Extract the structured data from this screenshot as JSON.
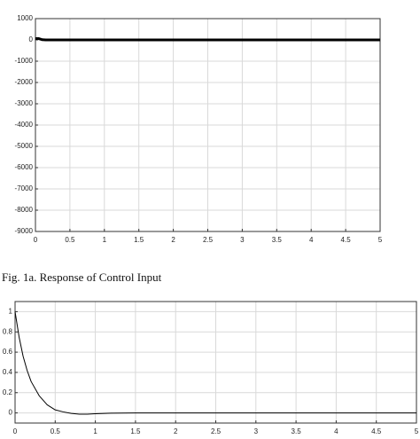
{
  "caption": "Fig. 1a. Response of Control Input",
  "chart_data": [
    {
      "type": "line",
      "x": [
        0,
        0.05,
        0.1,
        0.15,
        1,
        2,
        3,
        4,
        5
      ],
      "series": [
        {
          "color": "#000000",
          "values": [
            60,
            60,
            10,
            0,
            0,
            0,
            0,
            0,
            0
          ]
        }
      ],
      "xlim": [
        0,
        5
      ],
      "xticks": [
        0,
        0.5,
        1,
        1.5,
        2,
        2.5,
        3,
        3.5,
        4,
        4.5,
        5
      ],
      "ylim": [
        -9000,
        1000
      ],
      "yticks": [
        1000,
        0,
        -1000,
        -2000,
        -3000,
        -4000,
        -5000,
        -6000,
        -7000,
        -8000,
        -9000
      ],
      "grid": true
    },
    {
      "type": "line",
      "x": [
        0,
        0.05,
        0.1,
        0.15,
        0.2,
        0.3,
        0.4,
        0.5,
        0.6,
        0.7,
        0.8,
        0.9,
        1,
        1.2,
        1.5,
        2,
        3,
        4,
        5
      ],
      "series": [
        {
          "color": "#000000",
          "values": [
            1,
            0.75,
            0.56,
            0.42,
            0.31,
            0.17,
            0.08,
            0.03,
            0.01,
            -0.005,
            -0.012,
            -0.012,
            -0.008,
            -0.003,
            0,
            0,
            0,
            0,
            0
          ]
        }
      ],
      "xlim": [
        0,
        5
      ],
      "xticks": [
        0,
        0.5,
        1,
        1.5,
        2,
        2.5,
        3,
        3.5,
        4,
        4.5,
        5
      ],
      "ylim": [
        -0.1,
        1.1
      ],
      "yticks": [
        0,
        0.2,
        0.4,
        0.6,
        0.8,
        1
      ],
      "grid": true
    }
  ]
}
